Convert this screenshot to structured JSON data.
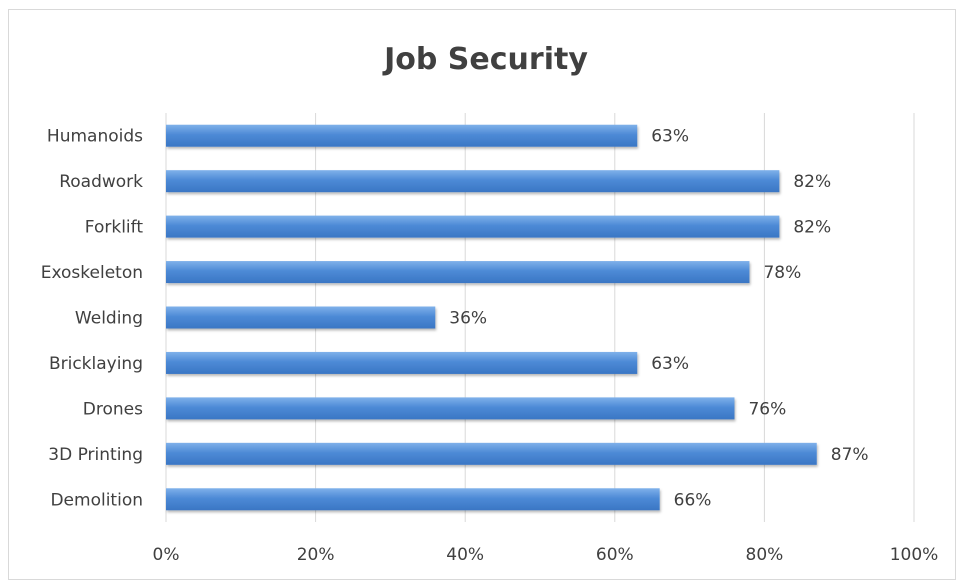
{
  "chart_data": {
    "type": "bar",
    "orientation": "horizontal",
    "title": "Job Security",
    "categories": [
      "Humanoids",
      "Roadwork",
      "Forklift",
      "Exoskeleton",
      "Welding",
      "Bricklaying",
      "Drones",
      "3D Printing",
      "Demolition"
    ],
    "values": [
      0.63,
      0.82,
      0.82,
      0.78,
      0.36,
      0.63,
      0.76,
      0.87,
      0.66
    ],
    "data_labels": [
      "63%",
      "82%",
      "82%",
      "78%",
      "36%",
      "63%",
      "76%",
      "87%",
      "66%"
    ],
    "xlim": [
      0,
      1
    ],
    "x_ticks": [
      0,
      0.2,
      0.4,
      0.6,
      0.8,
      1.0
    ],
    "x_tick_labels": [
      "0%",
      "20%",
      "40%",
      "60%",
      "80%",
      "100%"
    ],
    "grid": "vertical",
    "legend": "none",
    "bar_color": "#4f8fd8"
  }
}
